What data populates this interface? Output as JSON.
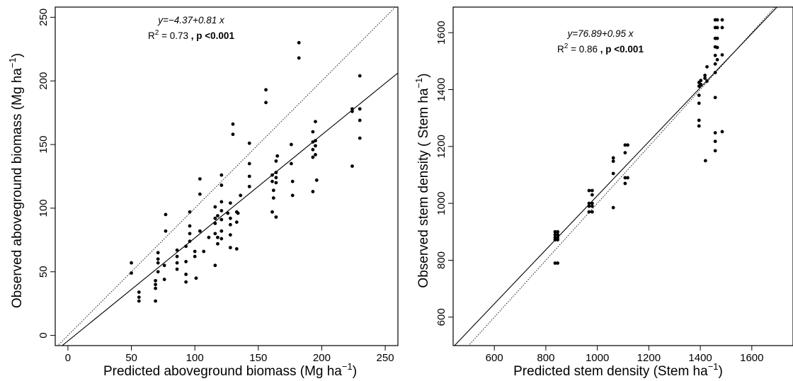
{
  "chart_data": [
    {
      "type": "scatter",
      "xlabel": "Predicted aboveground biomass (Mg  ha",
      "xlabel_sup": "−1",
      "xlabel_end": ")",
      "ylabel": "Observed aboveground biomass  (Mg  ha",
      "ylabel_sup": "−1",
      "ylabel_end": ")",
      "xlim": [
        -10,
        260
      ],
      "ylim": [
        -8,
        258
      ],
      "xticks": [
        0,
        50,
        100,
        150,
        200,
        250
      ],
      "yticks": [
        0,
        50,
        100,
        150,
        200,
        250
      ],
      "equation": "y=−4.37+0.81 x",
      "r2_prefix": "R",
      "r2_sup": "2",
      "r2_value": " = 0.73",
      "p_text": " , p <0.001",
      "fit_line": {
        "intercept": -4.37,
        "slope": 0.81
      },
      "reference_line": {
        "intercept": 0,
        "slope": 1
      },
      "points": [
        [
          50,
          57
        ],
        [
          50,
          49
        ],
        [
          56,
          34
        ],
        [
          56,
          30
        ],
        [
          56,
          27
        ],
        [
          69,
          43
        ],
        [
          69,
          40
        ],
        [
          69,
          37
        ],
        [
          69,
          27
        ],
        [
          71,
          65
        ],
        [
          71,
          60
        ],
        [
          71,
          57
        ],
        [
          71,
          50
        ],
        [
          76,
          55
        ],
        [
          76,
          44
        ],
        [
          77,
          95
        ],
        [
          77,
          82
        ],
        [
          86,
          67
        ],
        [
          86,
          62
        ],
        [
          86,
          57
        ],
        [
          86,
          52
        ],
        [
          93,
          70
        ],
        [
          93,
          58
        ],
        [
          93,
          48
        ],
        [
          93,
          42
        ],
        [
          96,
          97
        ],
        [
          96,
          86
        ],
        [
          96,
          80
        ],
        [
          96,
          74
        ],
        [
          100,
          66
        ],
        [
          100,
          62
        ],
        [
          101,
          45
        ],
        [
          104,
          123
        ],
        [
          104,
          111
        ],
        [
          104,
          82
        ],
        [
          107,
          66
        ],
        [
          111,
          77
        ],
        [
          116,
          101
        ],
        [
          116,
          92
        ],
        [
          116,
          88
        ],
        [
          116,
          80
        ],
        [
          116,
          55
        ],
        [
          118,
          77
        ],
        [
          118,
          72
        ],
        [
          118,
          94
        ],
        [
          121,
          126
        ],
        [
          121,
          118
        ],
        [
          121,
          105
        ],
        [
          121,
          98
        ],
        [
          121,
          91
        ],
        [
          121,
          82
        ],
        [
          121,
          76
        ],
        [
          126,
          96
        ],
        [
          128,
          104
        ],
        [
          128,
          92
        ],
        [
          128,
          87
        ],
        [
          128,
          79
        ],
        [
          128,
          69
        ],
        [
          130,
          166
        ],
        [
          130,
          158
        ],
        [
          133,
          68
        ],
        [
          133,
          97
        ],
        [
          133,
          89
        ],
        [
          134,
          96
        ],
        [
          136,
          110
        ],
        [
          143,
          151
        ],
        [
          143,
          135
        ],
        [
          143,
          125
        ],
        [
          143,
          117
        ],
        [
          156,
          193
        ],
        [
          156,
          183
        ],
        [
          161,
          126
        ],
        [
          161,
          97
        ],
        [
          161,
          121
        ],
        [
          162,
          108
        ],
        [
          162,
          114
        ],
        [
          164,
          137
        ],
        [
          164,
          128
        ],
        [
          164,
          124
        ],
        [
          164,
          120
        ],
        [
          164,
          93
        ],
        [
          165,
          141
        ],
        [
          176,
          150
        ],
        [
          176,
          135
        ],
        [
          177,
          121
        ],
        [
          177,
          110
        ],
        [
          182,
          230
        ],
        [
          182,
          218
        ],
        [
          193,
          160
        ],
        [
          193,
          152
        ],
        [
          193,
          146
        ],
        [
          195,
          153
        ],
        [
          195,
          168
        ],
        [
          195,
          149
        ],
        [
          195,
          142
        ],
        [
          193,
          113
        ],
        [
          193,
          140
        ],
        [
          196,
          122
        ],
        [
          224,
          178
        ],
        [
          224,
          176
        ],
        [
          224,
          133
        ],
        [
          230,
          204
        ],
        [
          230,
          178
        ],
        [
          230,
          169
        ],
        [
          230,
          155
        ]
      ]
    },
    {
      "type": "scatter",
      "xlabel": "Predicted stem density (Stem  ha",
      "xlabel_sup": "−1",
      "xlabel_end": ")",
      "ylabel": "Observed stem density  ( Stem  ha",
      "ylabel_sup": "−1",
      "ylabel_end": ")",
      "xlim": [
        440,
        1760
      ],
      "ylim": [
        500,
        1690
      ],
      "xticks": [
        600,
        800,
        1000,
        1200,
        1400,
        1600
      ],
      "yticks": [
        600,
        800,
        1000,
        1200,
        1400,
        1600
      ],
      "equation": "y=76.89+0.95 x",
      "r2_prefix": "R",
      "r2_sup": "2",
      "r2_value": " = 0.86",
      "p_text": " , p <0.001",
      "fit_line": {
        "intercept": 76.89,
        "slope": 0.95
      },
      "reference_line": {
        "intercept": 0,
        "slope": 1
      },
      "points": [
        [
          836,
          900
        ],
        [
          836,
          890
        ],
        [
          836,
          880
        ],
        [
          836,
          872
        ],
        [
          836,
          790
        ],
        [
          846,
          900
        ],
        [
          846,
          890
        ],
        [
          846,
          880
        ],
        [
          846,
          872
        ],
        [
          846,
          790
        ],
        [
          968,
          1045
        ],
        [
          968,
          1000
        ],
        [
          968,
          990
        ],
        [
          968,
          970
        ],
        [
          980,
          1045
        ],
        [
          980,
          1030
        ],
        [
          980,
          1000
        ],
        [
          980,
          990
        ],
        [
          980,
          970
        ],
        [
          1062,
          1160
        ],
        [
          1062,
          1148
        ],
        [
          1062,
          1105
        ],
        [
          1062,
          985
        ],
        [
          1108,
          1205
        ],
        [
          1108,
          1178
        ],
        [
          1108,
          1090
        ],
        [
          1108,
          1070
        ],
        [
          1118,
          1205
        ],
        [
          1118,
          1090
        ],
        [
          1395,
          1425
        ],
        [
          1395,
          1412
        ],
        [
          1395,
          1380
        ],
        [
          1395,
          1352
        ],
        [
          1395,
          1292
        ],
        [
          1395,
          1272
        ],
        [
          1402,
          1432
        ],
        [
          1402,
          1418
        ],
        [
          1418,
          1450
        ],
        [
          1418,
          1440
        ],
        [
          1420,
          1150
        ],
        [
          1426,
          1480
        ],
        [
          1426,
          1430
        ],
        [
          1458,
          1645
        ],
        [
          1458,
          1618
        ],
        [
          1458,
          1580
        ],
        [
          1458,
          1550
        ],
        [
          1458,
          1520
        ],
        [
          1458,
          1490
        ],
        [
          1458,
          1460
        ],
        [
          1458,
          1372
        ],
        [
          1458,
          1248
        ],
        [
          1458,
          1218
        ],
        [
          1458,
          1185
        ],
        [
          1466,
          1645
        ],
        [
          1466,
          1618
        ],
        [
          1466,
          1580
        ],
        [
          1466,
          1548
        ],
        [
          1466,
          1505
        ],
        [
          1485,
          1645
        ],
        [
          1485,
          1618
        ],
        [
          1485,
          1522
        ],
        [
          1485,
          1252
        ]
      ]
    }
  ]
}
